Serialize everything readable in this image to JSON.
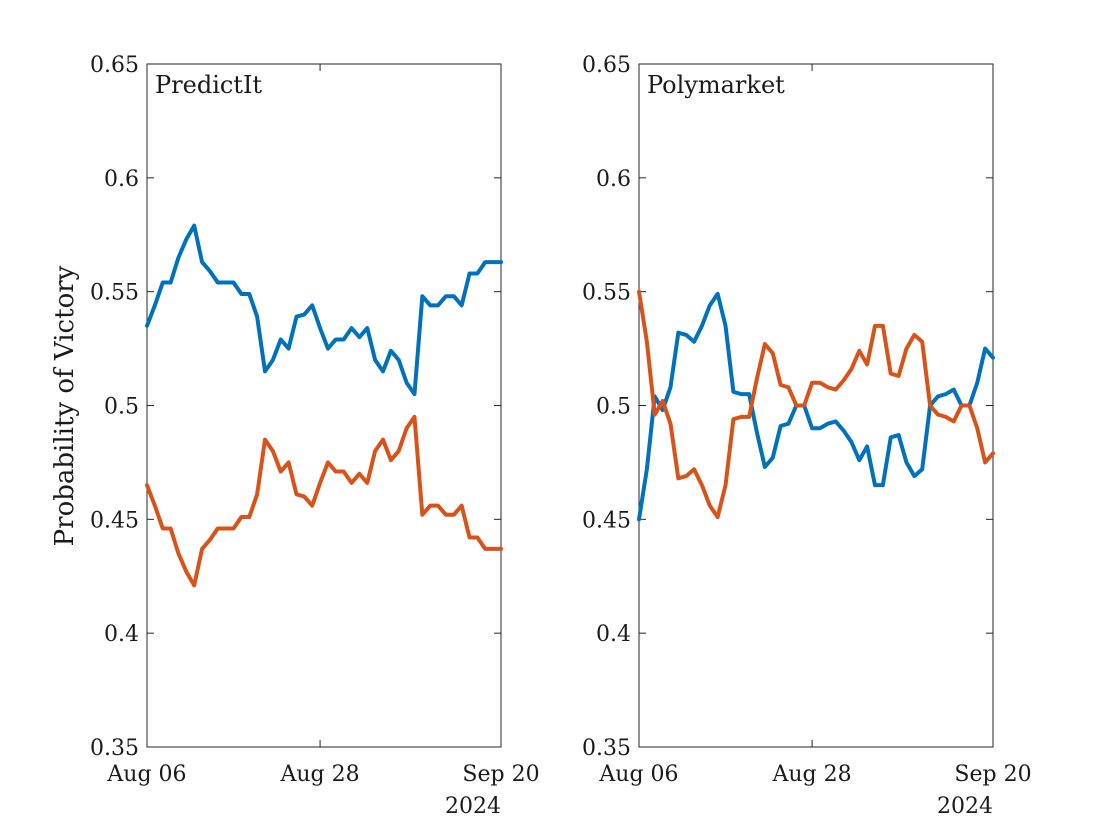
{
  "ylabel": "Probability of Victory",
  "colors": {
    "blue": "#0072BD",
    "orange": "#D95319"
  },
  "chart_data": [
    {
      "type": "line",
      "title": "PredictIt",
      "xlabel": "",
      "ylabel": "Probability of Victory",
      "xlim": [
        "2024-08-06",
        "2024-09-20"
      ],
      "ylim": [
        0.35,
        0.65
      ],
      "yticks": [
        0.35,
        0.4,
        0.45,
        0.5,
        0.55,
        0.6,
        0.65
      ],
      "yticklabels": [
        "0.35",
        "0.4",
        "0.45",
        "0.5",
        "0.55",
        "0.6",
        "0.65"
      ],
      "xticks": [
        "2024-08-06",
        "2024-08-28",
        "2024-09-20"
      ],
      "xticklabels": [
        "Aug 06",
        "Aug 28",
        "Sep 20"
      ],
      "xsublabel": "2024",
      "grid": false,
      "x": [
        "2024-08-06",
        "2024-08-07",
        "2024-08-08",
        "2024-08-09",
        "2024-08-10",
        "2024-08-11",
        "2024-08-12",
        "2024-08-13",
        "2024-08-14",
        "2024-08-15",
        "2024-08-16",
        "2024-08-17",
        "2024-08-18",
        "2024-08-19",
        "2024-08-20",
        "2024-08-21",
        "2024-08-22",
        "2024-08-23",
        "2024-08-24",
        "2024-08-25",
        "2024-08-26",
        "2024-08-27",
        "2024-08-28",
        "2024-08-29",
        "2024-08-30",
        "2024-08-31",
        "2024-09-01",
        "2024-09-02",
        "2024-09-03",
        "2024-09-04",
        "2024-09-05",
        "2024-09-06",
        "2024-09-07",
        "2024-09-08",
        "2024-09-09",
        "2024-09-10",
        "2024-09-11",
        "2024-09-12",
        "2024-09-13",
        "2024-09-14",
        "2024-09-15",
        "2024-09-16",
        "2024-09-17",
        "2024-09-18",
        "2024-09-19",
        "2024-09-20"
      ],
      "series": [
        {
          "color": "#0072BD",
          "values": [
            0.535,
            0.544,
            0.554,
            0.554,
            0.565,
            0.573,
            0.579,
            0.563,
            0.559,
            0.554,
            0.554,
            0.554,
            0.549,
            0.549,
            0.539,
            0.515,
            0.52,
            0.529,
            0.525,
            0.539,
            0.54,
            0.544,
            0.534,
            0.525,
            0.529,
            0.529,
            0.534,
            0.53,
            0.534,
            0.52,
            0.515,
            0.524,
            0.52,
            0.51,
            0.505,
            0.548,
            0.544,
            0.544,
            0.548,
            0.548,
            0.544,
            0.558,
            0.558,
            0.563,
            0.563,
            0.563
          ]
        },
        {
          "color": "#D95319",
          "values": [
            0.465,
            0.456,
            0.446,
            0.446,
            0.435,
            0.427,
            0.421,
            0.437,
            0.441,
            0.446,
            0.446,
            0.446,
            0.451,
            0.451,
            0.461,
            0.485,
            0.48,
            0.471,
            0.475,
            0.461,
            0.46,
            0.456,
            0.466,
            0.475,
            0.471,
            0.471,
            0.466,
            0.47,
            0.466,
            0.48,
            0.485,
            0.476,
            0.48,
            0.49,
            0.495,
            0.452,
            0.456,
            0.456,
            0.452,
            0.452,
            0.456,
            0.442,
            0.442,
            0.437,
            0.437,
            0.437
          ]
        }
      ]
    },
    {
      "type": "line",
      "title": "Polymarket",
      "xlabel": "",
      "ylabel": "",
      "xlim": [
        "2024-08-06",
        "2024-09-20"
      ],
      "ylim": [
        0.35,
        0.65
      ],
      "yticks": [
        0.35,
        0.4,
        0.45,
        0.5,
        0.55,
        0.6,
        0.65
      ],
      "yticklabels": [
        "0.35",
        "0.4",
        "0.45",
        "0.5",
        "0.55",
        "0.6",
        "0.65"
      ],
      "xticks": [
        "2024-08-06",
        "2024-08-28",
        "2024-09-20"
      ],
      "xticklabels": [
        "Aug 06",
        "Aug 28",
        "Sep 20"
      ],
      "xsublabel": "2024",
      "grid": false,
      "x": [
        "2024-08-06",
        "2024-08-07",
        "2024-08-08",
        "2024-08-09",
        "2024-08-10",
        "2024-08-11",
        "2024-08-12",
        "2024-08-13",
        "2024-08-14",
        "2024-08-15",
        "2024-08-16",
        "2024-08-17",
        "2024-08-18",
        "2024-08-19",
        "2024-08-20",
        "2024-08-21",
        "2024-08-22",
        "2024-08-23",
        "2024-08-24",
        "2024-08-25",
        "2024-08-26",
        "2024-08-27",
        "2024-08-28",
        "2024-08-29",
        "2024-08-30",
        "2024-08-31",
        "2024-09-01",
        "2024-09-02",
        "2024-09-03",
        "2024-09-04",
        "2024-09-05",
        "2024-09-06",
        "2024-09-07",
        "2024-09-08",
        "2024-09-09",
        "2024-09-10",
        "2024-09-11",
        "2024-09-12",
        "2024-09-13",
        "2024-09-14",
        "2024-09-15",
        "2024-09-16",
        "2024-09-17",
        "2024-09-18",
        "2024-09-19",
        "2024-09-20"
      ],
      "series": [
        {
          "color": "#0072BD",
          "values": [
            0.45,
            0.472,
            0.504,
            0.498,
            0.508,
            0.532,
            0.531,
            0.528,
            0.535,
            0.544,
            0.549,
            0.535,
            0.506,
            0.505,
            0.505,
            0.488,
            0.473,
            0.477,
            0.491,
            0.492,
            0.5,
            0.5,
            0.49,
            0.49,
            0.492,
            0.493,
            0.489,
            0.484,
            0.476,
            0.482,
            0.465,
            0.465,
            0.486,
            0.487,
            0.475,
            0.469,
            0.472,
            0.5,
            0.504,
            0.505,
            0.507,
            0.5,
            0.5,
            0.51,
            0.525,
            0.521
          ]
        },
        {
          "color": "#D95319",
          "values": [
            0.55,
            0.528,
            0.496,
            0.502,
            0.492,
            0.468,
            0.469,
            0.472,
            0.465,
            0.456,
            0.451,
            0.465,
            0.494,
            0.495,
            0.495,
            0.512,
            0.527,
            0.523,
            0.509,
            0.508,
            0.5,
            0.5,
            0.51,
            0.51,
            0.508,
            0.507,
            0.511,
            0.516,
            0.524,
            0.518,
            0.535,
            0.535,
            0.514,
            0.513,
            0.525,
            0.531,
            0.528,
            0.5,
            0.496,
            0.495,
            0.493,
            0.5,
            0.5,
            0.49,
            0.475,
            0.479
          ]
        }
      ]
    }
  ]
}
